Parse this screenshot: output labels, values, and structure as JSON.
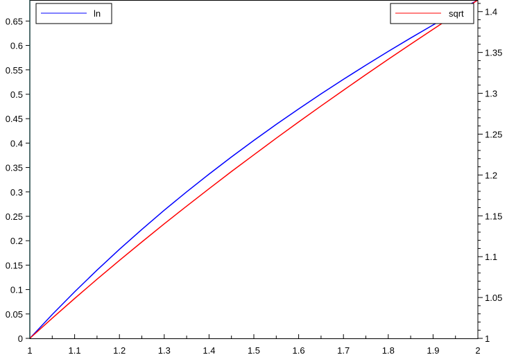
{
  "chart_data": {
    "type": "line",
    "x": [
      1,
      1.05,
      1.1,
      1.15,
      1.2,
      1.25,
      1.3,
      1.35,
      1.4,
      1.45,
      1.5,
      1.55,
      1.6,
      1.65,
      1.7,
      1.75,
      1.8,
      1.85,
      1.9,
      1.95,
      2
    ],
    "series": [
      {
        "name": "ln",
        "axis": "left",
        "color": "#0000ff",
        "values": [
          0,
          0.0488,
          0.0953,
          0.1398,
          0.1823,
          0.2231,
          0.2624,
          0.3001,
          0.3365,
          0.3716,
          0.4055,
          0.4383,
          0.47,
          0.5008,
          0.5306,
          0.5596,
          0.5878,
          0.6152,
          0.6419,
          0.6678,
          0.6931
        ]
      },
      {
        "name": "sqrt",
        "axis": "right",
        "color": "#ff0000",
        "values": [
          1,
          1.0247,
          1.0488,
          1.0724,
          1.0954,
          1.118,
          1.1402,
          1.1619,
          1.1832,
          1.2042,
          1.2247,
          1.245,
          1.2649,
          1.2845,
          1.3038,
          1.3229,
          1.3416,
          1.3601,
          1.3784,
          1.3964,
          1.4142
        ]
      }
    ],
    "xlim": [
      1,
      2
    ],
    "ylim_left": [
      0,
      0.6931
    ],
    "ylim_right": [
      1,
      1.4142
    ],
    "xticks": [
      "1",
      "1.1",
      "1.2",
      "1.3",
      "1.4",
      "1.5",
      "1.6",
      "1.7",
      "1.8",
      "1.9",
      "2"
    ],
    "yticks_left": [
      "0",
      "0.05",
      "0.1",
      "0.15",
      "0.2",
      "0.25",
      "0.3",
      "0.35",
      "0.4",
      "0.45",
      "0.5",
      "0.55",
      "0.6",
      "0.65"
    ],
    "yticks_right": [
      "1",
      "1.05",
      "1.1",
      "1.15",
      "1.2",
      "1.25",
      "1.3",
      "1.35",
      "1.4"
    ],
    "legend": [
      {
        "label": "ln",
        "placement": "top-left"
      },
      {
        "label": "sqrt",
        "placement": "top-right"
      }
    ],
    "grid": false
  }
}
